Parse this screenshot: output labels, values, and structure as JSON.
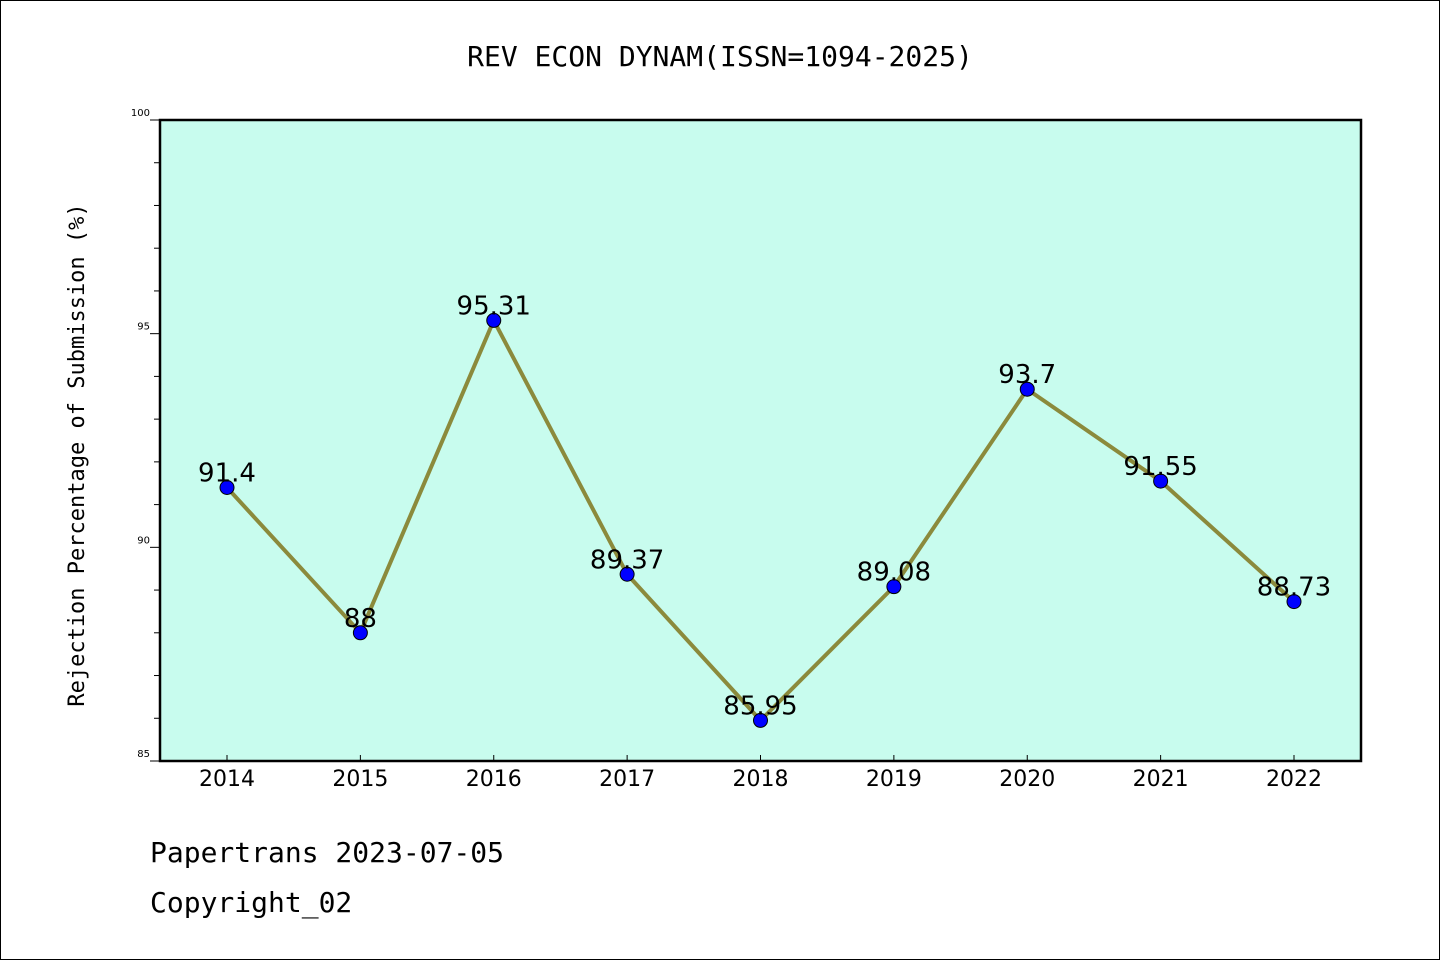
{
  "chart_data": {
    "type": "line",
    "title": "REV ECON DYNAM(ISSN=1094-2025)",
    "xlabel": "",
    "ylabel": "Rejection Percentage of Submission (%)",
    "categories": [
      "2014",
      "2015",
      "2016",
      "2017",
      "2018",
      "2019",
      "2020",
      "2021",
      "2022"
    ],
    "series": [
      {
        "values": [
          91.4,
          88,
          95.31,
          89.37,
          85.95,
          89.08,
          93.7,
          91.55,
          88.73
        ],
        "labels": [
          "91.4",
          "88",
          "95.31",
          "89.37",
          "85.95",
          "89.08",
          "93.7",
          "91.55",
          "88.73"
        ]
      }
    ],
    "ylim": [
      85,
      100
    ],
    "yticks": [
      "85",
      "90",
      "95",
      "100"
    ],
    "grid": false,
    "plot_background": "#c8fcee",
    "line_color": "#8b8a3c",
    "marker_color": "#0000ff"
  },
  "footer": {
    "line1": "Papertrans 2023-07-05",
    "line2": "Copyright_02"
  }
}
